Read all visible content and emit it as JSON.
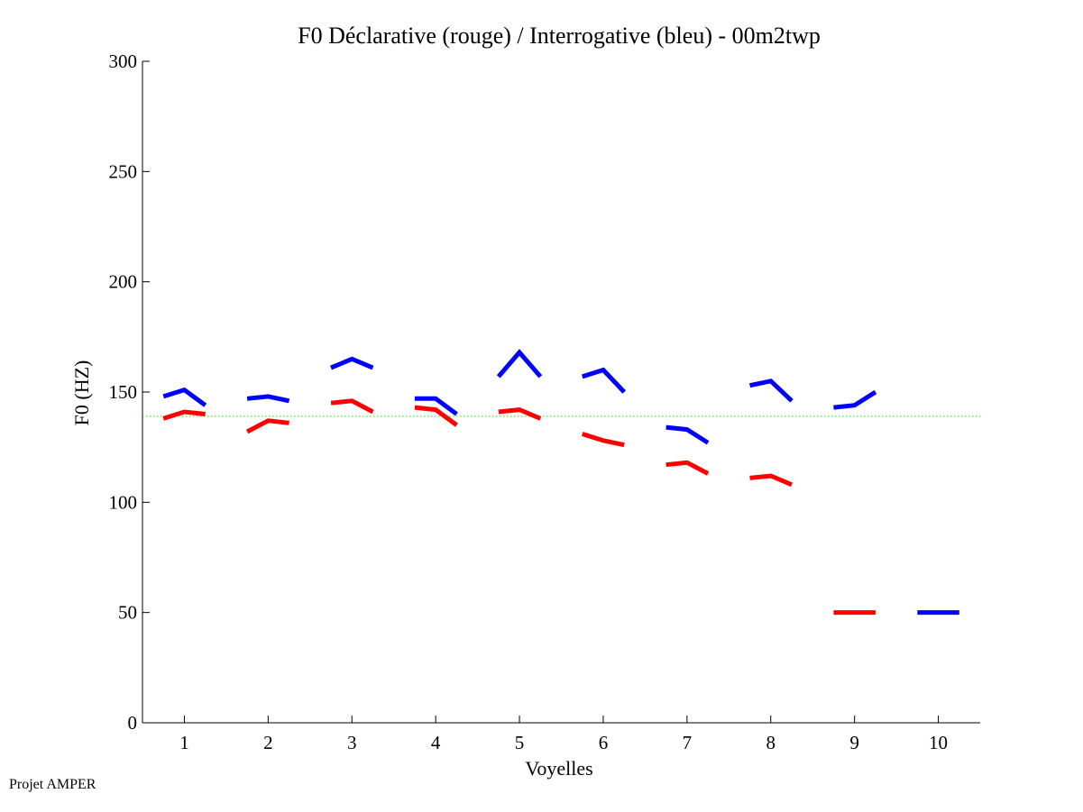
{
  "chart_data": {
    "type": "line",
    "title": "F0 Déclarative (rouge) / Interrogative (bleu) - 00m2twp",
    "xlabel": "Voyelles",
    "ylabel": "F0 (HZ)",
    "xlim": [
      0.5,
      10.5
    ],
    "ylim": [
      0,
      300
    ],
    "xticks": [
      1,
      2,
      3,
      4,
      5,
      6,
      7,
      8,
      9,
      10
    ],
    "yticks": [
      0,
      50,
      100,
      150,
      200,
      250,
      300
    ],
    "grid": false,
    "reference_line": {
      "y": 139,
      "color": "#33cc33",
      "style": "dotted"
    },
    "series": [
      {
        "color": "#ff0000",
        "segments": [
          {
            "x": [
              0.75,
              1.0,
              1.25
            ],
            "y": [
              138,
              141,
              140
            ]
          },
          {
            "x": [
              1.75,
              2.0,
              2.25
            ],
            "y": [
              132,
              137,
              136
            ]
          },
          {
            "x": [
              2.75,
              3.0,
              3.25
            ],
            "y": [
              145,
              146,
              141
            ]
          },
          {
            "x": [
              3.75,
              4.0,
              4.25
            ],
            "y": [
              143,
              142,
              135
            ]
          },
          {
            "x": [
              4.75,
              5.0,
              5.25
            ],
            "y": [
              141,
              142,
              138
            ]
          },
          {
            "x": [
              5.75,
              6.0,
              6.25
            ],
            "y": [
              131,
              128,
              126
            ]
          },
          {
            "x": [
              6.75,
              7.0,
              7.25
            ],
            "y": [
              117,
              118,
              113
            ]
          },
          {
            "x": [
              7.75,
              8.0,
              8.25
            ],
            "y": [
              111,
              112,
              108
            ]
          }
        ],
        "legend_key": {
          "x": [
            8.75,
            9.25
          ],
          "y": [
            50,
            50
          ]
        }
      },
      {
        "color": "#0000ff",
        "segments": [
          {
            "x": [
              0.75,
              1.0,
              1.25
            ],
            "y": [
              148,
              151,
              144
            ]
          },
          {
            "x": [
              1.75,
              2.0,
              2.25
            ],
            "y": [
              147,
              148,
              146
            ]
          },
          {
            "x": [
              2.75,
              3.0,
              3.25
            ],
            "y": [
              161,
              165,
              161
            ]
          },
          {
            "x": [
              3.75,
              4.0,
              4.25
            ],
            "y": [
              147,
              147,
              140
            ]
          },
          {
            "x": [
              4.75,
              5.0,
              5.25
            ],
            "y": [
              157,
              168,
              157
            ]
          },
          {
            "x": [
              5.75,
              6.0,
              6.25
            ],
            "y": [
              157,
              160,
              150
            ]
          },
          {
            "x": [
              6.75,
              7.0,
              7.25
            ],
            "y": [
              134,
              133,
              127
            ]
          },
          {
            "x": [
              7.75,
              8.0,
              8.25
            ],
            "y": [
              153,
              155,
              146
            ]
          },
          {
            "x": [
              8.75,
              9.0,
              9.25
            ],
            "y": [
              143,
              144,
              150
            ]
          }
        ],
        "legend_key": {
          "x": [
            9.75,
            10.25
          ],
          "y": [
            50,
            50
          ]
        }
      }
    ]
  },
  "footer": {
    "text": "Projet AMPER"
  }
}
